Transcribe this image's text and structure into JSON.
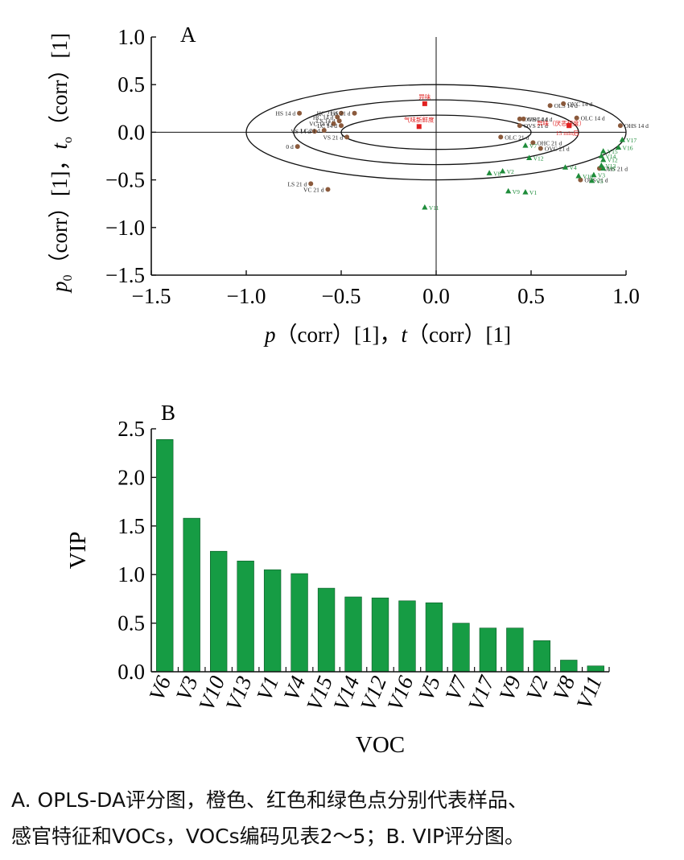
{
  "chart_data": [
    {
      "type": "scatter",
      "panel_label": "A",
      "xlabel_parts": [
        "p",
        "（corr）[1]，",
        "t",
        "（corr）[1]"
      ],
      "ylabel_parts": [
        "p",
        "0",
        "（corr）[1]，",
        "t",
        "o",
        "（corr）[1]"
      ],
      "xlim": [
        -1.5,
        1.0
      ],
      "ylim": [
        -1.5,
        1.0
      ],
      "x_ticks": [
        -1.5,
        -1.0,
        -0.5,
        0.0,
        0.5,
        1.0
      ],
      "x_tick_labels": [
        "−1.5",
        "−1.0",
        "−0.5",
        "0.0",
        "0.5",
        "1.0"
      ],
      "y_ticks": [
        -1.5,
        -1.0,
        -0.5,
        0.0,
        0.5,
        1.0
      ],
      "y_tick_labels": [
        "−1.5",
        "−1.0",
        "−0.5",
        "0.0",
        "0.5",
        "1.0"
      ],
      "colors": {
        "samples": "#8B5A3C",
        "sensory": "#E02020",
        "vocs": "#1E8C3A"
      },
      "series": [
        {
          "group": "samples",
          "marker": "circle",
          "points": [
            {
              "label": "HS 14 d",
              "x": -0.72,
              "y": 0.2
            },
            {
              "label": "HC 21 d",
              "x": -0.5,
              "y": 0.2
            },
            {
              "label": "HS 21 d",
              "x": -0.43,
              "y": 0.2
            },
            {
              "label": "HC 14 d",
              "x": -0.52,
              "y": 0.16
            },
            {
              "label": "LS 14 d",
              "x": -0.51,
              "y": 0.12
            },
            {
              "label": "VC 14 d",
              "x": -0.54,
              "y": 0.09
            },
            {
              "label": "LC 14 d",
              "x": -0.5,
              "y": 0.07
            },
            {
              "label": "VS 14 d",
              "x": -0.64,
              "y": 0.01
            },
            {
              "label": "LC 21 d",
              "x": -0.59,
              "y": 0.02
            },
            {
              "label": "VS 21 d",
              "x": -0.47,
              "y": -0.05
            },
            {
              "label": "0 d",
              "x": -0.73,
              "y": -0.15
            },
            {
              "label": "LS 21 d",
              "x": -0.66,
              "y": -0.54
            },
            {
              "label": "VC 21 d",
              "x": -0.57,
              "y": -0.6
            },
            {
              "label": "OLS 14 d",
              "x": 0.6,
              "y": 0.28
            },
            {
              "label": "OVC 14 d",
              "x": 0.67,
              "y": 0.3
            },
            {
              "label": "OVS 14 d",
              "x": 0.44,
              "y": 0.14
            },
            {
              "label": "OHC 14 d",
              "x": 0.46,
              "y": 0.14
            },
            {
              "label": "OLC 14 d",
              "x": 0.74,
              "y": 0.15
            },
            {
              "label": "OHS 14 d",
              "x": 0.97,
              "y": 0.07
            },
            {
              "label": "OVS 21 d",
              "x": 0.44,
              "y": 0.07
            },
            {
              "label": "OLC 21 d",
              "x": 0.34,
              "y": -0.05
            },
            {
              "label": "OHC 21 d",
              "x": 0.51,
              "y": -0.11
            },
            {
              "label": "OVC 21 d",
              "x": 0.55,
              "y": -0.17
            },
            {
              "label": "OHS 21 d",
              "x": 0.86,
              "y": -0.38
            },
            {
              "label": "OLS 21 d",
              "x": 0.76,
              "y": -0.5
            }
          ]
        },
        {
          "group": "sensory",
          "marker": "square",
          "points": [
            {
              "label": "异味",
              "x": -0.06,
              "y": 0.3
            },
            {
              "label": "气味新鲜度",
              "x": -0.09,
              "y": 0.06
            },
            {
              "label": "异味（厌恶程度）",
              "x": 0.7,
              "y": 0.07
            },
            {
              "label": "15 min后",
              "x": 0.7,
              "y": 0.07
            }
          ]
        },
        {
          "group": "vocs",
          "marker": "triangle",
          "points": [
            {
              "label": "V17",
              "x": 0.98,
              "y": -0.08
            },
            {
              "label": "V16",
              "x": 0.96,
              "y": -0.16
            },
            {
              "label": "V15",
              "x": 0.88,
              "y": -0.2
            },
            {
              "label": "V14",
              "x": 0.87,
              "y": -0.25
            },
            {
              "label": "V12",
              "x": 0.88,
              "y": -0.29
            },
            {
              "label": "V13",
              "x": 0.87,
              "y": -0.35
            },
            {
              "label": "V6",
              "x": 0.88,
              "y": -0.38
            },
            {
              "label": "V3",
              "x": 0.83,
              "y": -0.45
            },
            {
              "label": "V10",
              "x": 0.75,
              "y": -0.46
            },
            {
              "label": "V5",
              "x": 0.82,
              "y": -0.51
            },
            {
              "label": "V4",
              "x": 0.68,
              "y": -0.37
            },
            {
              "label": "V7",
              "x": 0.47,
              "y": -0.14
            },
            {
              "label": "V12",
              "x": 0.49,
              "y": -0.27
            },
            {
              "label": "V2",
              "x": 0.35,
              "y": -0.41
            },
            {
              "label": "V8",
              "x": 0.28,
              "y": -0.43
            },
            {
              "label": "V9",
              "x": 0.38,
              "y": -0.62
            },
            {
              "label": "V1",
              "x": 0.47,
              "y": -0.63
            },
            {
              "label": "V11",
              "x": -0.06,
              "y": -0.79
            }
          ]
        }
      ]
    },
    {
      "type": "bar",
      "panel_label": "B",
      "xlabel": "VOC",
      "ylabel": "VIP",
      "ylim": [
        0,
        2.5
      ],
      "y_ticks": [
        0.0,
        0.5,
        1.0,
        1.5,
        2.0,
        2.5
      ],
      "y_tick_labels": [
        "0.0",
        "0.5",
        "1.0",
        "1.5",
        "2.0",
        "2.5"
      ],
      "bar_color": "#169C44",
      "categories": [
        "V6",
        "V3",
        "V10",
        "V13",
        "V1",
        "V4",
        "V15",
        "V14",
        "V12",
        "V16",
        "V5",
        "V7",
        "V17",
        "V9",
        "V2",
        "V8",
        "V11"
      ],
      "values": [
        2.39,
        1.58,
        1.24,
        1.14,
        1.05,
        1.01,
        0.86,
        0.77,
        0.76,
        0.73,
        0.71,
        0.5,
        0.45,
        0.45,
        0.32,
        0.12,
        0.06
      ]
    }
  ],
  "caption": {
    "line1": "A. OPLS-DA评分图，橙色、红色和绿色点分别代表样品、",
    "line2": "感官特征和VOCs，VOCs编码见表2～5；B. VIP评分图。"
  }
}
